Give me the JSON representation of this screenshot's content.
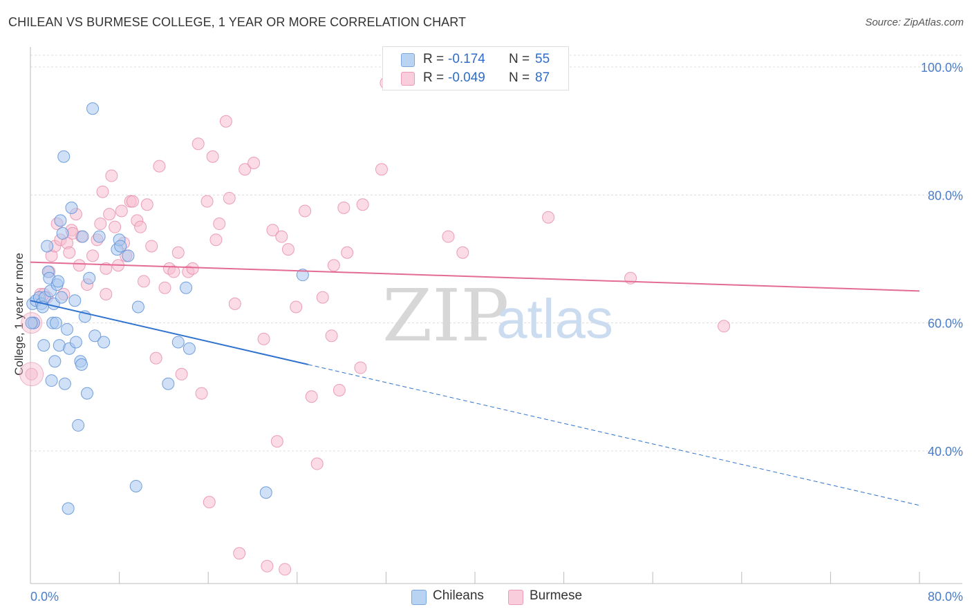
{
  "chart_data": {
    "type": "scatter",
    "title": "CHILEAN VS BURMESE COLLEGE, 1 YEAR OR MORE CORRELATION CHART",
    "source": "Source: ZipAtlas.com",
    "ylabel": "College, 1 year or more",
    "xlim": [
      0,
      80
    ],
    "ylim": [
      20,
      100
    ],
    "x_tick_labels": [
      "0.0%",
      "80.0%"
    ],
    "y_ticks": [
      {
        "value": 40,
        "label": "40.0%"
      },
      {
        "value": 60,
        "label": "60.0%"
      },
      {
        "value": 80,
        "label": "80.0%"
      },
      {
        "value": 100,
        "label": "100.0%"
      }
    ],
    "watermark": {
      "zip": "ZIP",
      "atlas": "atlas"
    },
    "colors": {
      "chileans_fill": "#a9c8f0",
      "chileans_stroke": "#5b8fd6",
      "chileans_line": "#2f72cf",
      "burmese_fill": "#f7bed0",
      "burmese_stroke": "#e58aa8",
      "burmese_line": "#e36b94",
      "accent_text": "#2f6cc6"
    },
    "legend": {
      "rows": [
        {
          "r_label": "R =",
          "r_value": "-0.174",
          "n_label": "N =",
          "n_value": "55"
        },
        {
          "r_label": "R =",
          "r_value": "-0.049",
          "n_label": "N =",
          "n_value": "87"
        }
      ]
    },
    "series": [
      {
        "name": "Chileans",
        "trend": {
          "x0": 0,
          "y0": 63.5,
          "x1": 25,
          "y1": 53.5,
          "dash_to_x": 80,
          "dash_to_y": 31.5
        },
        "points": [
          [
            0.2,
            63.0
          ],
          [
            0.3,
            60.0
          ],
          [
            0.5,
            63.5
          ],
          [
            0.8,
            64.0
          ],
          [
            1.0,
            63.0
          ],
          [
            1.2,
            56.5
          ],
          [
            1.3,
            64.0
          ],
          [
            1.5,
            72.0
          ],
          [
            1.6,
            68.0
          ],
          [
            1.7,
            67.0
          ],
          [
            1.8,
            65.0
          ],
          [
            1.9,
            51.0
          ],
          [
            2.0,
            60.0
          ],
          [
            2.1,
            63.0
          ],
          [
            2.2,
            54.0
          ],
          [
            2.4,
            66.0
          ],
          [
            2.5,
            66.5
          ],
          [
            2.6,
            56.5
          ],
          [
            2.7,
            76.0
          ],
          [
            2.8,
            64.0
          ],
          [
            2.9,
            74.0
          ],
          [
            3.0,
            86.0
          ],
          [
            3.1,
            50.5
          ],
          [
            3.3,
            59.0
          ],
          [
            3.5,
            56.0
          ],
          [
            3.7,
            78.0
          ],
          [
            4.0,
            63.5
          ],
          [
            4.1,
            57.0
          ],
          [
            4.3,
            44.0
          ],
          [
            4.5,
            54.0
          ],
          [
            4.6,
            53.5
          ],
          [
            4.7,
            73.5
          ],
          [
            4.9,
            61.0
          ],
          [
            5.1,
            49.0
          ],
          [
            5.3,
            67.0
          ],
          [
            5.6,
            93.5
          ],
          [
            5.8,
            58.0
          ],
          [
            6.2,
            73.5
          ],
          [
            6.6,
            57.0
          ],
          [
            7.8,
            71.5
          ],
          [
            8.0,
            73.0
          ],
          [
            8.1,
            72.0
          ],
          [
            8.8,
            70.5
          ],
          [
            9.5,
            34.5
          ],
          [
            9.7,
            62.5
          ],
          [
            12.4,
            50.5
          ],
          [
            13.3,
            57.0
          ],
          [
            14.0,
            65.5
          ],
          [
            14.3,
            56.0
          ],
          [
            21.2,
            33.5
          ],
          [
            24.5,
            67.5
          ],
          [
            0.1,
            60.0
          ],
          [
            3.4,
            31.0
          ],
          [
            2.3,
            60.0
          ],
          [
            1.1,
            62.5
          ]
        ]
      },
      {
        "name": "Burmese",
        "trend": {
          "x0": 0,
          "y0": 69.5,
          "x1": 80,
          "y1": 65.0
        },
        "points": [
          [
            0.1,
            52.0
          ],
          [
            0.3,
            60.0
          ],
          [
            0.9,
            64.5
          ],
          [
            1.5,
            64.0
          ],
          [
            1.7,
            68.0
          ],
          [
            1.9,
            70.5
          ],
          [
            2.2,
            72.0
          ],
          [
            2.4,
            75.5
          ],
          [
            2.7,
            73.0
          ],
          [
            3.0,
            64.5
          ],
          [
            3.3,
            72.5
          ],
          [
            3.5,
            71.0
          ],
          [
            3.7,
            74.5
          ],
          [
            4.1,
            77.0
          ],
          [
            4.4,
            69.0
          ],
          [
            4.6,
            73.5
          ],
          [
            5.1,
            66.0
          ],
          [
            5.6,
            70.5
          ],
          [
            6.0,
            73.0
          ],
          [
            6.3,
            75.5
          ],
          [
            6.5,
            80.5
          ],
          [
            6.8,
            64.5
          ],
          [
            7.1,
            77.0
          ],
          [
            7.3,
            83.0
          ],
          [
            7.6,
            75.0
          ],
          [
            7.9,
            69.0
          ],
          [
            8.2,
            77.5
          ],
          [
            8.6,
            70.5
          ],
          [
            9.0,
            79.0
          ],
          [
            9.2,
            79.0
          ],
          [
            9.6,
            76.0
          ],
          [
            9.9,
            75.0
          ],
          [
            10.2,
            66.5
          ],
          [
            10.5,
            78.5
          ],
          [
            10.9,
            72.0
          ],
          [
            11.3,
            54.5
          ],
          [
            11.6,
            84.5
          ],
          [
            12.1,
            65.5
          ],
          [
            12.5,
            68.5
          ],
          [
            12.9,
            68.0
          ],
          [
            13.3,
            71.0
          ],
          [
            13.6,
            52.0
          ],
          [
            14.2,
            68.0
          ],
          [
            14.6,
            68.5
          ],
          [
            15.1,
            88.0
          ],
          [
            15.4,
            49.0
          ],
          [
            15.9,
            79.0
          ],
          [
            16.1,
            32.0
          ],
          [
            16.4,
            86.0
          ],
          [
            16.7,
            73.0
          ],
          [
            17.0,
            75.5
          ],
          [
            17.6,
            91.5
          ],
          [
            17.9,
            79.5
          ],
          [
            18.4,
            63.0
          ],
          [
            18.8,
            24.0
          ],
          [
            19.3,
            84.0
          ],
          [
            20.1,
            85.0
          ],
          [
            21.0,
            57.5
          ],
          [
            21.3,
            22.0
          ],
          [
            21.8,
            74.5
          ],
          [
            22.2,
            41.5
          ],
          [
            22.6,
            73.5
          ],
          [
            22.9,
            21.5
          ],
          [
            23.2,
            71.5
          ],
          [
            23.9,
            62.5
          ],
          [
            24.7,
            77.5
          ],
          [
            25.3,
            48.5
          ],
          [
            25.8,
            38.0
          ],
          [
            26.3,
            64.0
          ],
          [
            27.1,
            58.0
          ],
          [
            27.3,
            69.0
          ],
          [
            27.8,
            49.5
          ],
          [
            28.2,
            78.0
          ],
          [
            28.5,
            71.0
          ],
          [
            29.7,
            53.0
          ],
          [
            29.9,
            78.5
          ],
          [
            31.6,
            84.0
          ],
          [
            32.0,
            97.5
          ],
          [
            37.6,
            73.5
          ],
          [
            38.9,
            71.0
          ],
          [
            46.6,
            76.5
          ],
          [
            54.0,
            67.0
          ],
          [
            62.4,
            59.5
          ],
          [
            1.2,
            64.5
          ],
          [
            6.8,
            68.5
          ],
          [
            8.4,
            72.5
          ],
          [
            3.8,
            74.0
          ]
        ]
      }
    ]
  }
}
